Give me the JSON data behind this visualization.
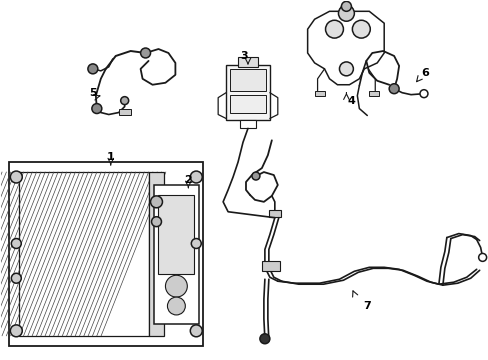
{
  "background_color": "#ffffff",
  "line_color": "#1a1a1a",
  "label_color": "#000000",
  "figsize": [
    4.89,
    3.6
  ],
  "dpi": 100,
  "lw": 1.1
}
